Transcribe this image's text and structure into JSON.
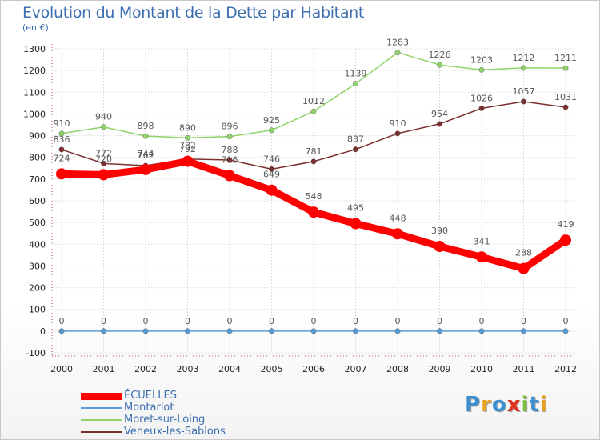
{
  "chart_data": {
    "type": "line",
    "title": "Evolution du Montant de la Dette par Habitant",
    "subtitle": "(en €)",
    "x": [
      "2000",
      "2001",
      "2002",
      "2003",
      "2004",
      "2005",
      "2006",
      "2007",
      "2008",
      "2009",
      "2010",
      "2011",
      "2012"
    ],
    "ylim": [
      -100,
      1300
    ],
    "yticks": [
      -100,
      0,
      100,
      200,
      300,
      400,
      500,
      600,
      700,
      800,
      900,
      1000,
      1100,
      1200,
      1300
    ],
    "grid": true,
    "legend_position": "bottom-left",
    "series": [
      {
        "name": "ÉCUELLES",
        "color": "#ff0000",
        "values": [
          724,
          720,
          744,
          782,
          716,
          649,
          548,
          495,
          448,
          390,
          341,
          288,
          419
        ]
      },
      {
        "name": "Montarlot",
        "color": "#5b9bd5",
        "values": [
          0,
          0,
          0,
          0,
          0,
          0,
          0,
          0,
          0,
          0,
          0,
          0,
          0
        ]
      },
      {
        "name": "Moret-sur-Loing",
        "color": "#8fd36b",
        "values": [
          910,
          940,
          898,
          890,
          896,
          925,
          1012,
          1139,
          1283,
          1226,
          1203,
          1212,
          1211
        ]
      },
      {
        "name": "Veneux-les-Sablons",
        "color": "#7a3030",
        "values": [
          836,
          772,
          762,
          792,
          788,
          746,
          781,
          837,
          910,
          954,
          1026,
          1057,
          1031
        ]
      }
    ]
  },
  "branding": {
    "logo_letters": [
      "P",
      "r",
      "o",
      "x",
      "i",
      "t",
      "i"
    ],
    "logo_colors": [
      "#3d8fd0",
      "#e8a020",
      "#3d8fd0",
      "#e03020",
      "#7dc040",
      "#3d8fd0",
      "#e8a020"
    ]
  }
}
